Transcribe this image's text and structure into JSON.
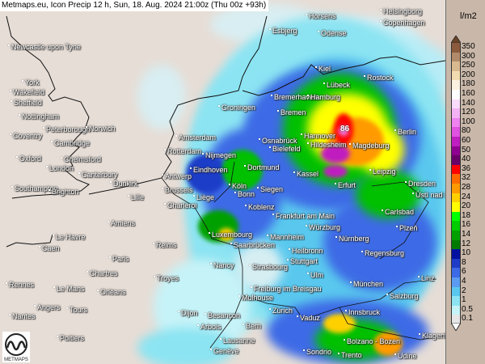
{
  "title": "Metmaps.eu, Icon Precip 12 h, Sun, 18. Aug. 2024 21:00z (Thu 00z +93h)",
  "max_value_label": "86",
  "logo_text": "METMAPS",
  "legend": {
    "unit": "l/m2",
    "steps": [
      {
        "label": "350",
        "color": "#8b5a3c"
      },
      {
        "label": "300",
        "color": "#b08a6a"
      },
      {
        "label": "250",
        "color": "#d9b98f"
      },
      {
        "label": "200",
        "color": "#f2dbb0"
      },
      {
        "label": "180",
        "color": "#fbf1e0"
      },
      {
        "label": "160",
        "color": "#ffffff"
      },
      {
        "label": "140",
        "color": "#f9dcf9"
      },
      {
        "label": "120",
        "color": "#f3b3f3"
      },
      {
        "label": "100",
        "color": "#ee82ee"
      },
      {
        "label": "80",
        "color": "#e052e0"
      },
      {
        "label": "60",
        "color": "#c01ec0"
      },
      {
        "label": "50",
        "color": "#900090"
      },
      {
        "label": "40",
        "color": "#680068"
      },
      {
        "label": "36",
        "color": "#ff0000"
      },
      {
        "label": "32",
        "color": "#ff6a00"
      },
      {
        "label": "28",
        "color": "#ff9a00"
      },
      {
        "label": "24",
        "color": "#ffd000"
      },
      {
        "label": "20",
        "color": "#ffff00"
      },
      {
        "label": "18",
        "color": "#00ff00"
      },
      {
        "label": "16",
        "color": "#00cc00"
      },
      {
        "label": "14",
        "color": "#00a000"
      },
      {
        "label": "12",
        "color": "#007a00"
      },
      {
        "label": "10",
        "color": "#0010a0"
      },
      {
        "label": "8",
        "color": "#1e3cc8"
      },
      {
        "label": "6",
        "color": "#3c6ae6"
      },
      {
        "label": "4",
        "color": "#5a9af0"
      },
      {
        "label": "2",
        "color": "#5ac8ee"
      },
      {
        "label": "1",
        "color": "#8ce4f2"
      },
      {
        "label": "0.5",
        "color": "#c6f3f8"
      },
      {
        "label": "0.1",
        "color": "#e6e6e6"
      }
    ]
  },
  "cities": [
    "Newcastle upon Tyne",
    "York",
    "Wakefield",
    "Sheffield",
    "Nottingham",
    "Peterborough",
    "Norwich",
    "Coventry",
    "Cambridge",
    "Oxford",
    "Chelmsford",
    "London",
    "Canterbury",
    "Southampton",
    "Brighton",
    "Dunkirk",
    "Amsterdam",
    "Rotterdam",
    "Nijmegen",
    "Eindhoven",
    "Antwerp",
    "Brussels",
    "Lille",
    "Liège",
    "Charleroi",
    "Amiens",
    "Le Havre",
    "Caen",
    "Reims",
    "Paris",
    "Chartres",
    "Troyes",
    "Rennes",
    "Le Mans",
    "Orléans",
    "Angers",
    "Tours",
    "Nantes",
    "Dijon",
    "Besançon",
    "Arbois",
    "Poitiers",
    "Genève",
    "Lausanne",
    "Bern",
    "Zürich",
    "Vaduz",
    "Mulhouse",
    "Freiburg im Breisgau",
    "Strasbourg",
    "Nancy",
    "Luxembourg",
    "Saarbrücken",
    "Mannheim",
    "Heilbronn",
    "Stuttgart",
    "Ulm",
    "Koblenz",
    "Frankfurt am Main",
    "Würzburg",
    "Nürnberg",
    "Regensburg",
    "München",
    "Salzburg",
    "Linz",
    "Innsbruck",
    "Bolzano - Bozen",
    "Trento",
    "Sondrio",
    "Udine",
    "Klagenfurt",
    "Köln",
    "Bonn",
    "Siegen",
    "Dortmund",
    "Kassel",
    "Erfurt",
    "Leipzig",
    "Dresden",
    "Ústí nad Labem",
    "Carlsbad",
    "Plzeň",
    "Bielefeld",
    "Osnabrück",
    "Hannover",
    "Hildesheim",
    "Magdeburg",
    "Berlin",
    "Bremen",
    "Bremerhaven",
    "Hamburg",
    "Groningen",
    "Kiel",
    "Lübeck",
    "Rostock",
    "Esbjerg",
    "Horsens",
    "Odense",
    "Helsingborg",
    "Copenhagen"
  ]
}
